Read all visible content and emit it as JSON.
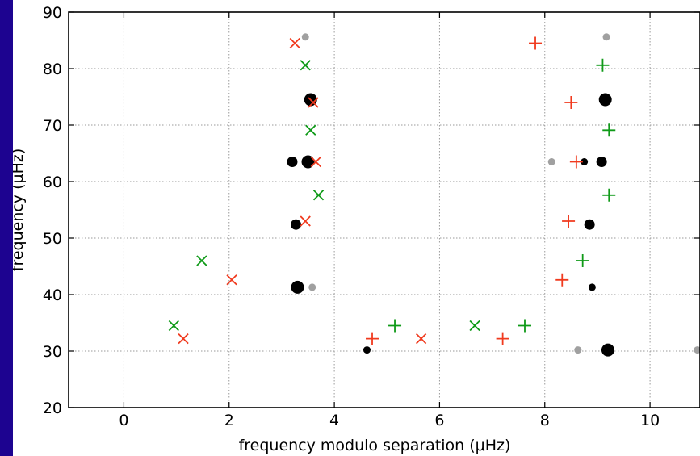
{
  "chart_data": {
    "type": "scatter",
    "xlabel": "frequency modulo separation (μHz)",
    "ylabel": "frequency (μHz)",
    "xlim": [
      -1.05,
      10.95
    ],
    "ylim": [
      20,
      90
    ],
    "xticks": [
      0,
      2,
      4,
      6,
      8,
      10
    ],
    "yticks": [
      20,
      30,
      40,
      50,
      60,
      70,
      80,
      90
    ],
    "grid": true,
    "colors": {
      "black": "#000000",
      "gray": "#a0a0a0",
      "red": "#f03a1e",
      "green": "#0f9a18"
    },
    "series": [
      {
        "marker": "circle-large",
        "color": "black",
        "points": [
          [
            3.3,
            41.3
          ],
          [
            3.5,
            63.5
          ],
          [
            3.55,
            74.5
          ],
          [
            9.15,
            74.5
          ],
          [
            9.2,
            30.2
          ]
        ]
      },
      {
        "marker": "circle-medium",
        "color": "black",
        "points": [
          [
            3.2,
            63.5
          ],
          [
            3.27,
            52.4
          ],
          [
            9.08,
            63.5
          ],
          [
            8.85,
            52.4
          ]
        ]
      },
      {
        "marker": "circle-small",
        "color": "black",
        "points": [
          [
            4.62,
            30.2
          ],
          [
            8.9,
            41.3
          ],
          [
            8.75,
            63.5
          ]
        ]
      },
      {
        "marker": "circle-small",
        "color": "gray",
        "points": [
          [
            3.45,
            85.6
          ],
          [
            3.58,
            41.3
          ],
          [
            8.13,
            63.5
          ],
          [
            8.63,
            30.2
          ],
          [
            9.17,
            85.6
          ],
          [
            10.9,
            30.2
          ]
        ]
      },
      {
        "marker": "x",
        "color": "red",
        "points": [
          [
            3.25,
            84.5
          ],
          [
            3.6,
            74.0
          ],
          [
            3.65,
            63.5
          ],
          [
            3.45,
            53.0
          ],
          [
            2.05,
            42.6
          ],
          [
            1.13,
            32.2
          ],
          [
            5.65,
            32.2
          ]
        ]
      },
      {
        "marker": "x",
        "color": "green",
        "points": [
          [
            3.45,
            80.6
          ],
          [
            3.55,
            69.1
          ],
          [
            3.7,
            57.6
          ],
          [
            1.48,
            46.0
          ],
          [
            0.95,
            34.5
          ],
          [
            6.67,
            34.5
          ]
        ]
      },
      {
        "marker": "plus",
        "color": "red",
        "points": [
          [
            7.82,
            84.5
          ],
          [
            8.5,
            74.0
          ],
          [
            8.6,
            63.5
          ],
          [
            8.45,
            53.0
          ],
          [
            8.33,
            42.6
          ],
          [
            4.72,
            32.2
          ],
          [
            7.2,
            32.2
          ]
        ]
      },
      {
        "marker": "plus",
        "color": "green",
        "points": [
          [
            9.1,
            80.6
          ],
          [
            9.22,
            69.1
          ],
          [
            9.22,
            57.6
          ],
          [
            8.72,
            46.0
          ],
          [
            5.15,
            34.5
          ],
          [
            7.62,
            34.5
          ]
        ]
      }
    ]
  }
}
